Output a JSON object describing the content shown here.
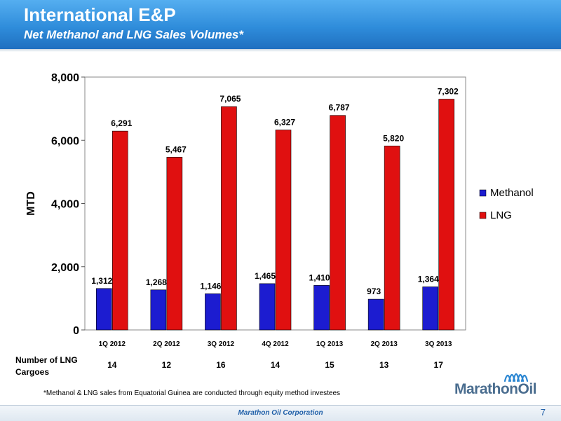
{
  "header": {
    "title": "International E&P",
    "subtitle": "Net Methanol and LNG Sales Volumes*"
  },
  "chart_data": {
    "type": "bar",
    "categories": [
      "1Q 2012",
      "2Q 2012",
      "3Q 2012",
      "4Q 2012",
      "1Q 2013",
      "2Q 2013",
      "3Q 2013"
    ],
    "series": [
      {
        "name": "Methanol",
        "color": "#1c1cd0",
        "values": [
          1312,
          1268,
          1146,
          1465,
          1410,
          973,
          1364
        ]
      },
      {
        "name": "LNG",
        "color": "#e01010",
        "values": [
          6291,
          5467,
          7065,
          6327,
          6787,
          5820,
          7302
        ]
      }
    ],
    "data_labels": {
      "Methanol": [
        "1,312",
        "1,268",
        "1,146",
        "1,465",
        "1,410",
        "973",
        "1,364"
      ],
      "LNG": [
        "6,291",
        "5,467",
        "7,065",
        "6,327",
        "6,787",
        "5,820",
        "7,302"
      ]
    },
    "ylabel": "MTD",
    "ylim": [
      0,
      8000
    ],
    "yticks": [
      0,
      2000,
      4000,
      6000,
      8000
    ],
    "ytick_labels": [
      "0",
      "2,000",
      "4,000",
      "6,000",
      "8,000"
    ],
    "legend_position": "right",
    "grid": false
  },
  "cargoes": {
    "label_line1": "Number of LNG",
    "label_line2": "Cargoes",
    "values": [
      "14",
      "12",
      "16",
      "14",
      "15",
      "13",
      "17"
    ]
  },
  "footnote": "*Methanol & LNG sales from Equatorial Guinea are conducted through equity method investees",
  "footer": {
    "company": "Marathon Oil Corporation",
    "page": "7"
  },
  "logo": {
    "text": "MarathonOil"
  }
}
